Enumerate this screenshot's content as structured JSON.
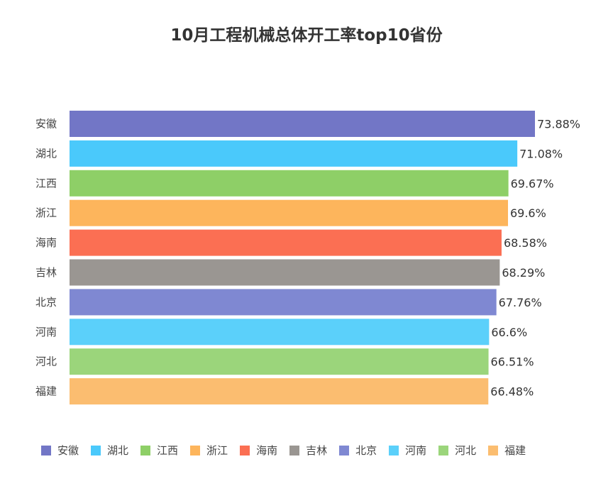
{
  "chart_data": {
    "type": "bar",
    "orientation": "horizontal",
    "title": "10月工程机械总体开工率top10省份",
    "xlabel": "",
    "ylabel": "",
    "categories": [
      "安徽",
      "湖北",
      "江西",
      "浙江",
      "海南",
      "吉林",
      "北京",
      "河南",
      "河北",
      "福建"
    ],
    "values": [
      73.88,
      71.08,
      69.67,
      69.6,
      68.58,
      68.29,
      67.76,
      66.6,
      66.51,
      66.48
    ],
    "value_labels": [
      "73.88%",
      "71.08%",
      "69.67%",
      "69.6%",
      "68.58%",
      "68.29%",
      "67.76%",
      "66.6%",
      "66.51%",
      "66.48%"
    ],
    "colors": [
      "#7276c6",
      "#4ac9fb",
      "#8ecf67",
      "#fdb55c",
      "#fb6f53",
      "#9a9692",
      "#7f88d2",
      "#5bd0fa",
      "#9bd57b",
      "#fbbd70"
    ],
    "xlim": [
      0,
      74
    ],
    "grid": false,
    "legend_position": "bottom"
  }
}
